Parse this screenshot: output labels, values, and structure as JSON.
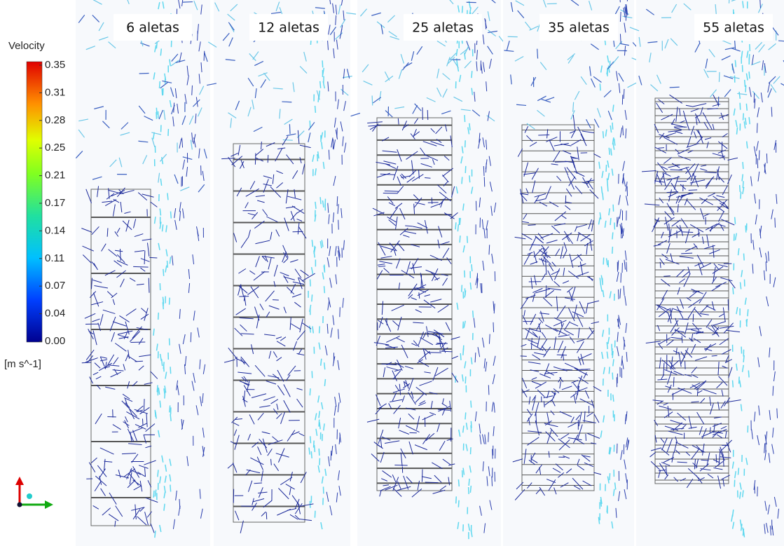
{
  "legend": {
    "title": "Velocity",
    "ticks": [
      "0.35",
      "0.31",
      "0.28",
      "0.25",
      "0.21",
      "0.17",
      "0.14",
      "0.11",
      "0.07",
      "0.04",
      "0.00"
    ],
    "unit": "[m s^-1]"
  },
  "panels": [
    {
      "label": "6 aletas"
    },
    {
      "label": "12 aletas"
    },
    {
      "label": "25 aletas"
    },
    {
      "label": "35 aletas"
    },
    {
      "label": "55 aletas"
    }
  ]
}
